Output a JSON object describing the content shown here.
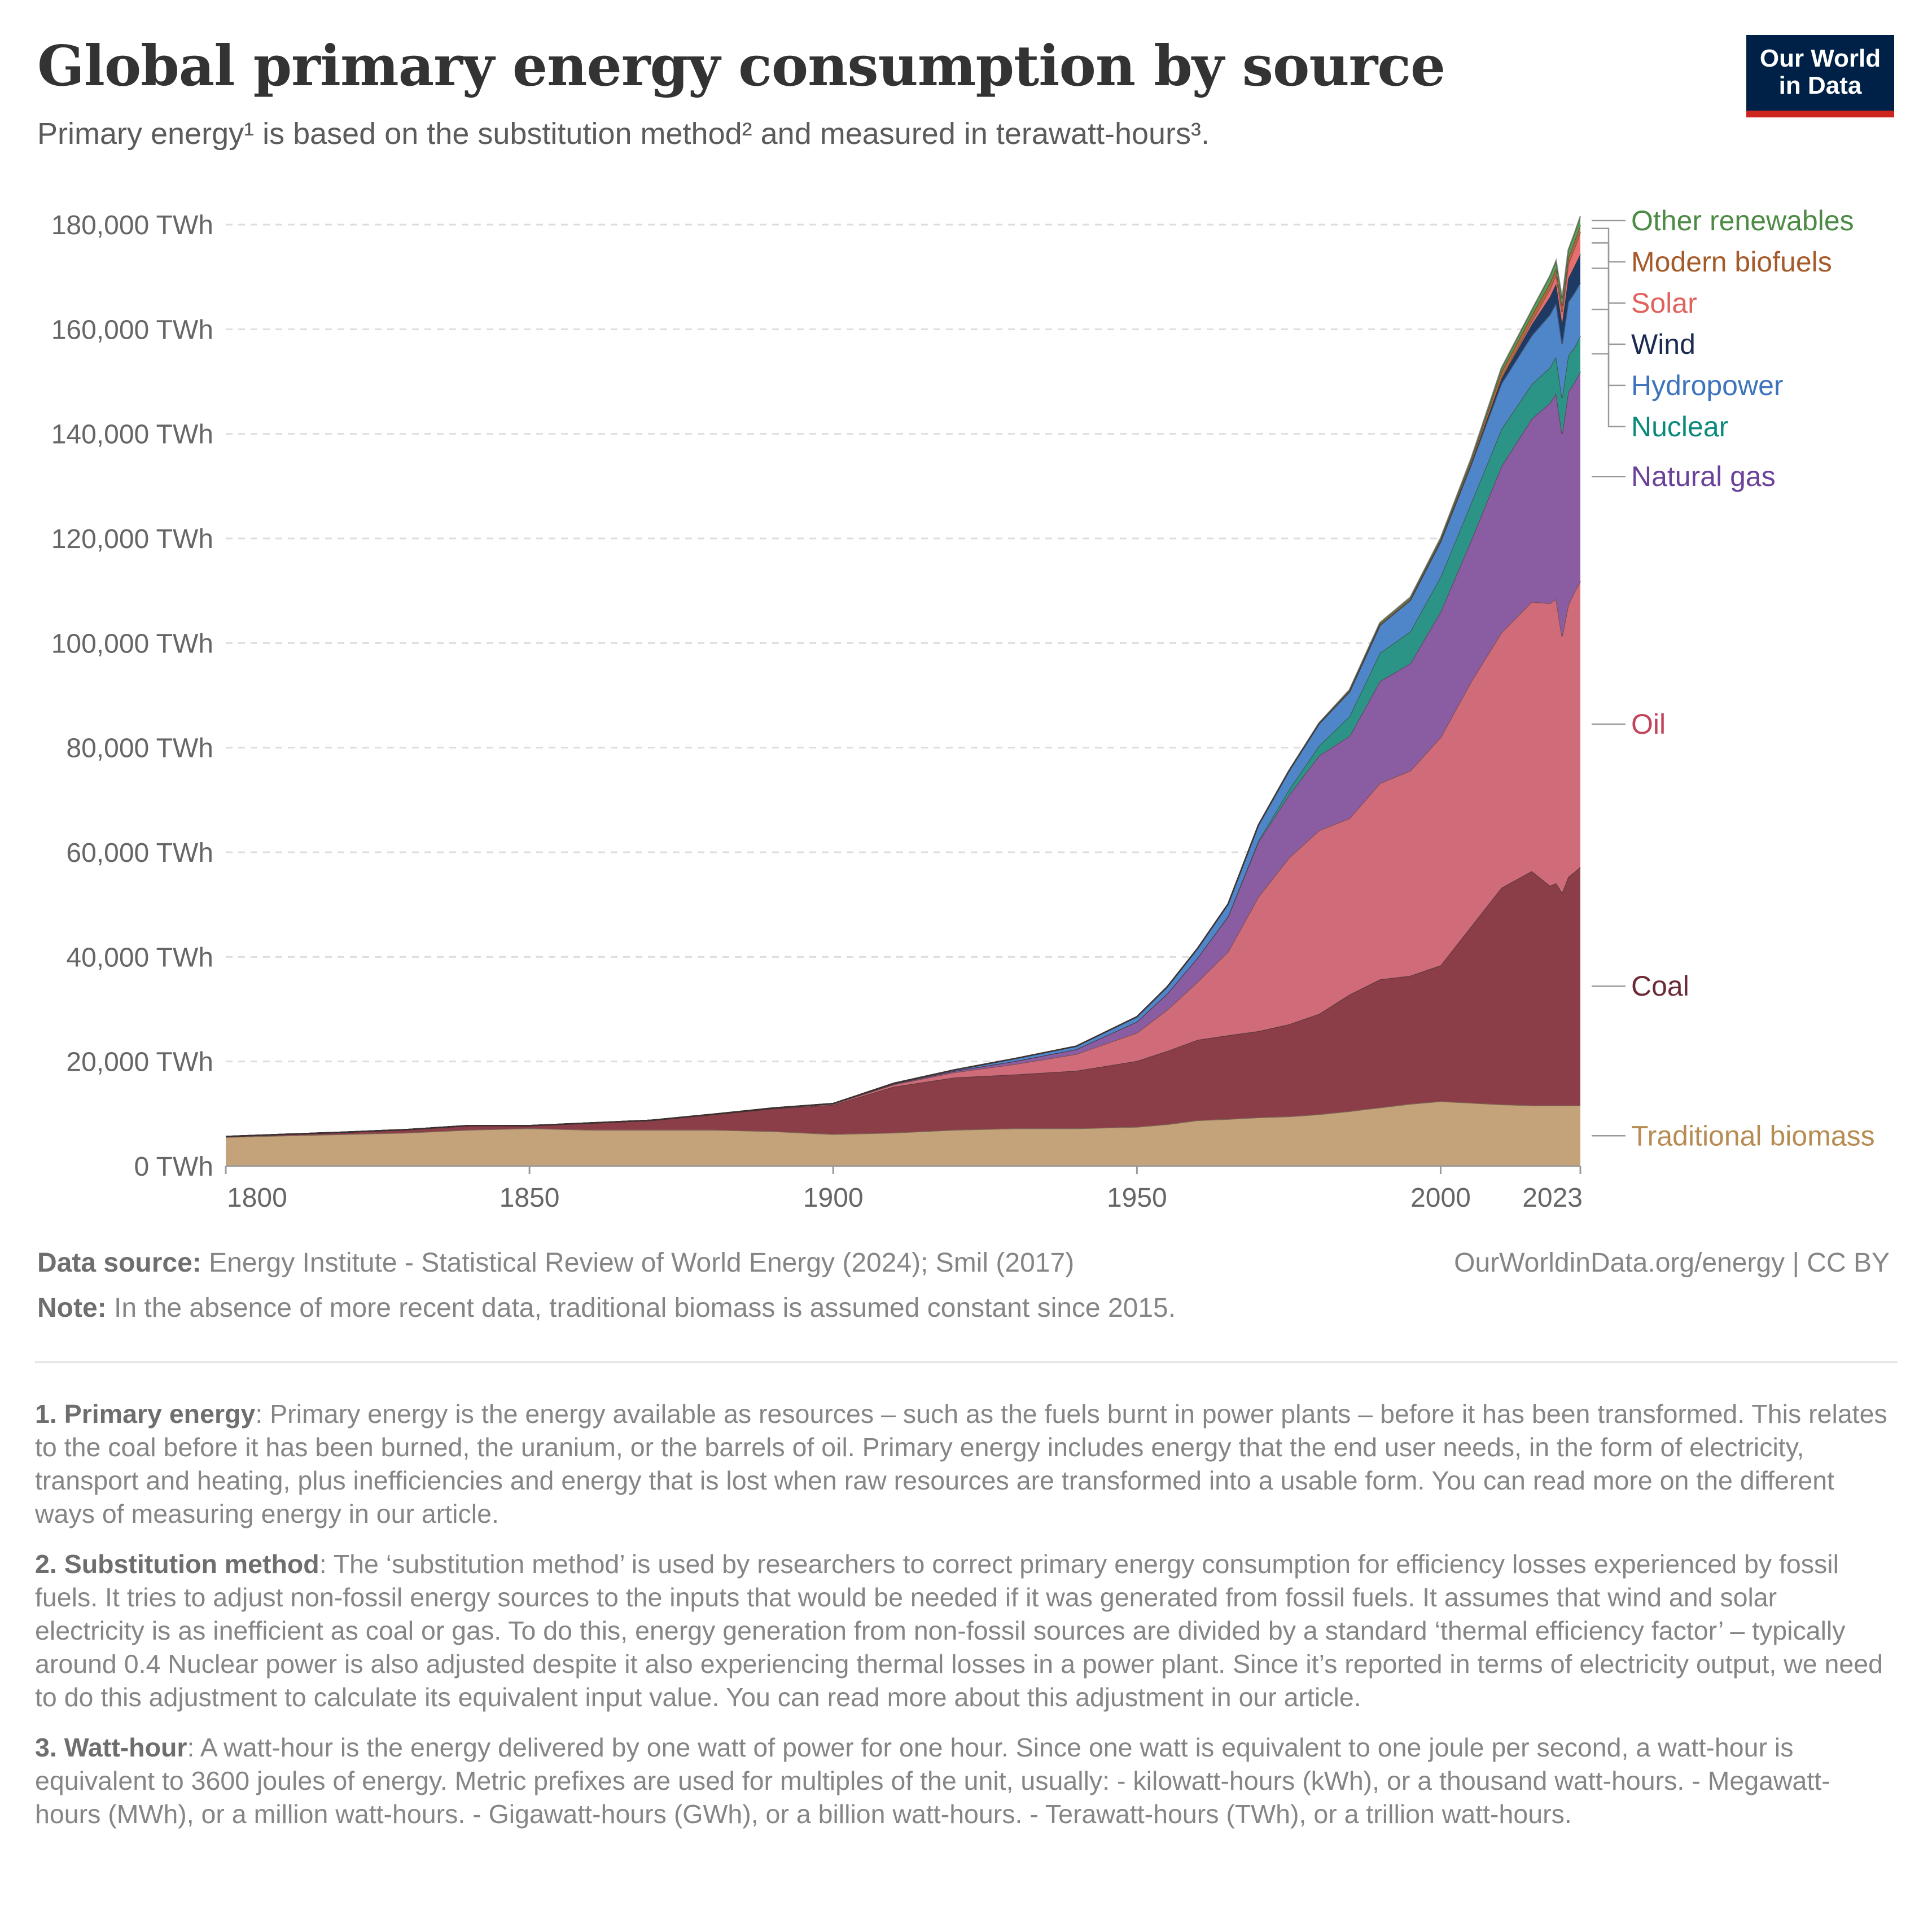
{
  "header": {
    "title": "Global primary energy consumption by source",
    "subtitle": "Primary energy¹ is based on the substitution method² and measured in terawatt-hours³.",
    "logo_line1": "Our World",
    "logo_line2": "in Data"
  },
  "footer": {
    "source_label": "Data source:",
    "source_text": "Energy Institute - Statistical Review of World Energy (2024); Smil (2017)",
    "credit": "OurWorldinData.org/energy | CC BY",
    "note_label": "Note:",
    "note_text": "In the absence of more recent data, traditional biomass is assumed constant since 2015."
  },
  "footnotes": [
    {
      "label": "1. Primary energy",
      "text": ": Primary energy is the energy available as resources – such as the fuels burnt in power plants – before it has been transformed. This relates to the coal before it has been burned, the uranium, or the barrels of oil. Primary energy includes energy that the end user needs, in the form of electricity, transport and heating, plus inefficiencies and energy that is lost when raw resources are transformed into a usable form. You can read more on the different ways of measuring energy in our article."
    },
    {
      "label": "2. Substitution method",
      "text": ": The ‘substitution method’ is used by researchers to correct primary energy consumption for efficiency losses experienced by fossil fuels. It tries to adjust non-fossil energy sources to the inputs that would be needed if it was generated from fossil fuels. It assumes that wind and solar electricity is as inefficient as coal or gas. To do this, energy generation from non-fossil sources are divided by a standard ‘thermal efficiency factor’ – typically around 0.4 Nuclear power is also adjusted despite it also experiencing thermal losses in a power plant. Since it’s reported in terms of electricity output, we need to do this adjustment to calculate its equivalent input value. You can read more about this adjustment in our article."
    },
    {
      "label": "3. Watt-hour",
      "text": ": A watt-hour is the energy delivered by one watt of power for one hour. Since one watt is equivalent to one joule per second, a watt-hour is equivalent to 3600 joules of energy. Metric prefixes are used for multiples of the unit, usually: - kilowatt-hours (kWh), or a thousand watt-hours. - Megawatt-hours (MWh), or a million watt-hours. - Gigawatt-hours (GWh), or a billion watt-hours. - Terawatt-hours (TWh), or a trillion watt-hours."
    }
  ],
  "chart_data": {
    "type": "area",
    "stacked": true,
    "title": "Global primary energy consumption by source",
    "ylabel": "",
    "xlabel": "",
    "xlim": [
      1800,
      2023
    ],
    "ylim": [
      0,
      180000
    ],
    "y_ticks": [
      0,
      20000,
      40000,
      60000,
      80000,
      100000,
      120000,
      140000,
      160000,
      180000
    ],
    "y_tick_labels": [
      "0 TWh",
      "20,000 TWh",
      "40,000 TWh",
      "60,000 TWh",
      "80,000 TWh",
      "100,000 TWh",
      "120,000 TWh",
      "140,000 TWh",
      "160,000 TWh",
      "180,000 TWh"
    ],
    "x_ticks": [
      1800,
      1850,
      1900,
      1950,
      2000,
      2023
    ],
    "x_tick_labels": [
      "1800",
      "1850",
      "1900",
      "1950",
      "2000",
      "2023"
    ],
    "grid": "horizontal dashed",
    "legend": "inline labels right",
    "x": [
      1800,
      1810,
      1820,
      1830,
      1840,
      1850,
      1860,
      1870,
      1880,
      1890,
      1900,
      1910,
      1920,
      1930,
      1940,
      1950,
      1955,
      1960,
      1965,
      1970,
      1975,
      1980,
      1985,
      1990,
      1995,
      2000,
      2005,
      2010,
      2015,
      2018,
      2019,
      2020,
      2021,
      2022,
      2023
    ],
    "series": [
      {
        "name": "Traditional biomass",
        "color": "#c4a27a",
        "values": [
          5556,
          5833,
          6111,
          6389,
          6944,
          7222,
          6944,
          6944,
          6944,
          6667,
          6111,
          6389,
          6944,
          7222,
          7222,
          7500,
          8000,
          8750,
          9000,
          9300,
          9500,
          9900,
          10500,
          11200,
          11900,
          12400,
          12100,
          11800,
          11600,
          11600,
          11600,
          11600,
          11600,
          11600,
          11600
        ]
      },
      {
        "name": "Coal",
        "color": "#8b3e48",
        "values": [
          97,
          250,
          400,
          600,
          800,
          500,
          1300,
          1800,
          2900,
          4300,
          5600,
          8800,
          10000,
          10300,
          11000,
          12600,
          14000,
          15400,
          16000,
          16500,
          17600,
          19200,
          22300,
          24500,
          24500,
          26000,
          33700,
          41400,
          44800,
          42000,
          42500,
          40700,
          43700,
          44600,
          45600
        ]
      },
      {
        "name": "Oil",
        "color": "#d06c7a",
        "values": [
          0,
          0,
          0,
          0,
          0,
          0,
          0,
          6,
          33,
          89,
          181,
          400,
          1000,
          2000,
          3200,
          5400,
          7900,
          11100,
          16000,
          25700,
          31800,
          35100,
          33700,
          37500,
          39200,
          43600,
          46800,
          48800,
          51500,
          54000,
          54400,
          49000,
          52000,
          53500,
          54600
        ]
      },
      {
        "name": "Natural gas",
        "color": "#8a5da3",
        "values": [
          0,
          0,
          0,
          0,
          0,
          0,
          0,
          0,
          6,
          33,
          64,
          150,
          250,
          560,
          900,
          2100,
          3100,
          4600,
          6700,
          10500,
          12000,
          14300,
          15700,
          19500,
          20500,
          24000,
          27000,
          31800,
          35000,
          38300,
          39300,
          38700,
          40700,
          40100,
          40100
        ]
      },
      {
        "name": "Nuclear",
        "color": "#2c9486",
        "values": [
          0,
          0,
          0,
          0,
          0,
          0,
          0,
          0,
          0,
          0,
          0,
          0,
          0,
          0,
          0,
          0,
          0,
          0,
          100,
          200,
          1000,
          1900,
          3800,
          5400,
          6100,
          6700,
          7100,
          7100,
          6600,
          6800,
          7000,
          6900,
          7000,
          6700,
          6800
        ]
      },
      {
        "name": "Hydropower",
        "color": "#4f86c9",
        "values": [
          0,
          0,
          0,
          0,
          0,
          0,
          0,
          0,
          0,
          0,
          0,
          100,
          200,
          500,
          600,
          950,
          1300,
          1800,
          2300,
          3000,
          3600,
          4200,
          4700,
          5300,
          6000,
          6700,
          7300,
          8700,
          9300,
          10100,
          10200,
          10300,
          10200,
          10400,
          10200
        ]
      },
      {
        "name": "Wind",
        "color": "#1c3a63",
        "values": [
          0,
          0,
          0,
          0,
          0,
          0,
          0,
          0,
          0,
          0,
          0,
          0,
          0,
          0,
          0,
          0,
          0,
          0,
          0,
          0,
          0,
          0,
          0,
          10,
          20,
          80,
          260,
          900,
          2100,
          3400,
          3700,
          4000,
          4500,
          5100,
          5500
        ]
      },
      {
        "name": "Solar",
        "color": "#e56f6e",
        "values": [
          0,
          0,
          0,
          0,
          0,
          0,
          0,
          0,
          0,
          0,
          0,
          0,
          0,
          0,
          0,
          0,
          0,
          0,
          0,
          0,
          0,
          0,
          0,
          0,
          1,
          3,
          10,
          90,
          680,
          1500,
          1800,
          2100,
          2700,
          3400,
          4200
        ]
      },
      {
        "name": "Modern biofuels",
        "color": "#b06a39",
        "values": [
          0,
          0,
          0,
          0,
          0,
          0,
          0,
          0,
          0,
          0,
          0,
          0,
          0,
          0,
          0,
          0,
          0,
          0,
          0,
          0,
          0,
          40,
          200,
          220,
          240,
          280,
          550,
          1300,
          1100,
          1200,
          1200,
          1150,
          1250,
          1300,
          1350
        ]
      },
      {
        "name": "Other renewables",
        "color": "#55a058",
        "values": [
          0,
          0,
          0,
          0,
          0,
          0,
          0,
          0,
          0,
          0,
          0,
          0,
          0,
          0,
          0,
          0,
          0,
          0,
          20,
          50,
          80,
          120,
          180,
          260,
          300,
          380,
          450,
          700,
          1000,
          1350,
          1400,
          1450,
          1500,
          1550,
          1650
        ]
      }
    ],
    "label_colors": {
      "Traditional biomass": "#b78c52",
      "Coal": "#6b2a35",
      "Oil": "#c2435a",
      "Natural gas": "#6b4199",
      "Nuclear": "#0b8a7c",
      "Hydropower": "#3d74bd",
      "Wind": "#1b2b4f",
      "Solar": "#e0625c",
      "Modern biofuels": "#a55a2a",
      "Other renewables": "#4c8a45"
    }
  }
}
